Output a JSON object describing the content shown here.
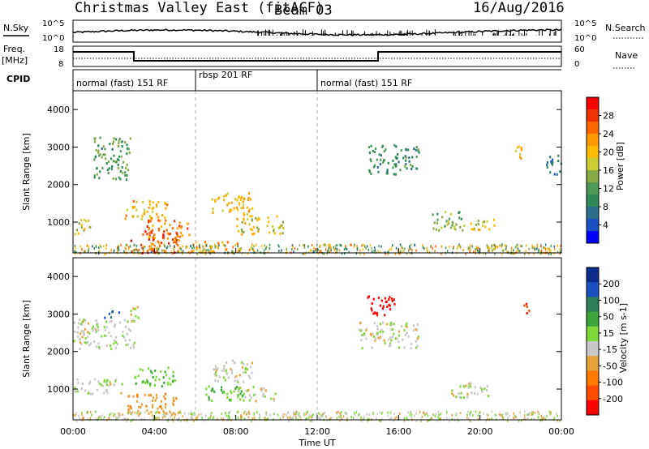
{
  "header": {
    "station_title": "Christmas Valley East (fitACF)",
    "beam_label": "Beam 03",
    "date": "16/Aug/2016"
  },
  "side_labels": {
    "nsky": "N.Sky",
    "nsearch": "N.Search",
    "freq": "Freq.",
    "freq_unit": "[MHz]",
    "nave": "Nave",
    "cpid": "CPID"
  },
  "noise_axis": {
    "left_ticks": [
      "10^5",
      "10^0"
    ],
    "right_ticks": [
      "10^5",
      "10^0"
    ]
  },
  "freq_axis": {
    "left_ticks": [
      "18",
      "8"
    ],
    "right_ticks": [
      "60",
      "0"
    ]
  },
  "cpid_segments": [
    {
      "label": "normal (fast) 151 RF",
      "start_h": 0,
      "end_h": 6
    },
    {
      "label": "rbsp 201 RF",
      "start_h": 6,
      "end_h": 12
    },
    {
      "label": "normal (fast) 151 RF",
      "start_h": 12,
      "end_h": 24
    }
  ],
  "x_axis": {
    "label": "Time UT",
    "ticks": [
      "00:00",
      "04:00",
      "08:00",
      "12:00",
      "16:00",
      "20:00",
      "00:00"
    ]
  },
  "power_panel": {
    "ylabel": "Slant Range [km]",
    "yticks": [
      "4000",
      "3000",
      "2000",
      "1000"
    ],
    "colorbar_label": "Power [dB]",
    "colorbar_ticks": [
      "28",
      "24",
      "20",
      "16",
      "12",
      "8",
      "4"
    ],
    "colorbar_colors": [
      "#ff0000",
      "#ee3300",
      "#ff6600",
      "#ff9900",
      "#ffbb00",
      "#cccc33",
      "#88aa44",
      "#4f9a5a",
      "#2e8b57",
      "#2a6e8a",
      "#1a50c0",
      "#0000ff"
    ]
  },
  "velocity_panel": {
    "ylabel": "Slant Range [km]",
    "yticks": [
      "4000",
      "3000",
      "2000",
      "1000"
    ],
    "colorbar_label": "Velocity [m s-1]",
    "colorbar_ticks": [
      "200",
      "100",
      "50",
      "15",
      "-15",
      "-50",
      "-100",
      "-200"
    ],
    "colorbar_colors": [
      "#0a2a8c",
      "#1a4fbf",
      "#2e7d5a",
      "#3da63a",
      "#7ed83a",
      "#c8c8c8",
      "#e8a23a",
      "#ff7a00",
      "#ff4a00",
      "#ff0000"
    ]
  },
  "chart_data": {
    "type": "heatmap",
    "x_range_hours": [
      0,
      24
    ],
    "y_range_km": [
      180,
      4500
    ],
    "power_blobs": [
      {
        "t0": 1.0,
        "t1": 2.8,
        "r0": 2150,
        "r1": 3300,
        "db": 12
      },
      {
        "t0": 0.0,
        "t1": 0.9,
        "r0": 700,
        "r1": 1100,
        "db": 18
      },
      {
        "t0": 2.5,
        "t1": 4.6,
        "r0": 1100,
        "r1": 1600,
        "db": 20
      },
      {
        "t0": 2.8,
        "t1": 5.3,
        "r0": 200,
        "r1": 800,
        "db": 26
      },
      {
        "t0": 3.6,
        "t1": 5.8,
        "r0": 600,
        "r1": 1100,
        "db": 24
      },
      {
        "t0": 5.8,
        "t1": 8.2,
        "r0": 200,
        "r1": 500,
        "db": 22
      },
      {
        "t0": 6.8,
        "t1": 8.8,
        "r0": 1200,
        "r1": 1800,
        "db": 20
      },
      {
        "t0": 8.0,
        "t1": 10.4,
        "r0": 700,
        "r1": 1200,
        "db": 18
      },
      {
        "t0": 14.5,
        "t1": 17.0,
        "r0": 2300,
        "r1": 3100,
        "db": 10
      },
      {
        "t0": 17.5,
        "t1": 19.2,
        "r0": 800,
        "r1": 1300,
        "db": 14
      },
      {
        "t0": 19.5,
        "t1": 21.0,
        "r0": 800,
        "r1": 1100,
        "db": 18
      },
      {
        "t0": 21.5,
        "t1": 22.0,
        "r0": 2700,
        "r1": 3100,
        "db": 20
      },
      {
        "t0": 23.2,
        "t1": 24.0,
        "r0": 2300,
        "r1": 2800,
        "db": 8
      }
    ],
    "velocity_blobs": [
      {
        "t0": 0.0,
        "t1": 3.0,
        "r0": 2100,
        "r1": 2900,
        "v": 0
      },
      {
        "t0": 2.8,
        "t1": 3.2,
        "r0": 2800,
        "r1": 3300,
        "v": 0
      },
      {
        "t0": 1.5,
        "t1": 2.3,
        "r0": 2900,
        "r1": 3100,
        "v": 120
      },
      {
        "t0": 0.0,
        "t1": 2.5,
        "r0": 900,
        "r1": 1300,
        "v": 0
      },
      {
        "t0": 2.6,
        "t1": 5.2,
        "r0": 300,
        "r1": 900,
        "v": -40
      },
      {
        "t0": 3.0,
        "t1": 5.0,
        "r0": 1100,
        "r1": 1600,
        "v": 30
      },
      {
        "t0": 6.8,
        "t1": 8.8,
        "r0": 1200,
        "r1": 1800,
        "v": 0
      },
      {
        "t0": 6.5,
        "t1": 8.5,
        "r0": 700,
        "r1": 1100,
        "v": 30
      },
      {
        "t0": 8.0,
        "t1": 10.0,
        "r0": 700,
        "r1": 1100,
        "v": 0
      },
      {
        "t0": 14.3,
        "t1": 15.8,
        "r0": 3000,
        "r1": 3500,
        "v": -200
      },
      {
        "t0": 14.0,
        "t1": 17.0,
        "r0": 2100,
        "r1": 2800,
        "v": 0
      },
      {
        "t0": 18.5,
        "t1": 20.5,
        "r0": 800,
        "r1": 1200,
        "v": 0
      },
      {
        "t0": 22.0,
        "t1": 22.4,
        "r0": 3000,
        "r1": 3300,
        "v": -180
      }
    ]
  }
}
